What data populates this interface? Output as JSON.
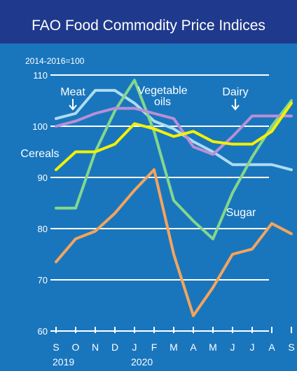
{
  "header": {
    "title": "FAO Food Commodity Price Indices"
  },
  "chart_data": {
    "type": "line",
    "base_note": "2014-2016=100",
    "categories": [
      "S",
      "O",
      "N",
      "D",
      "J",
      "F",
      "M",
      "A",
      "M",
      "J",
      "J",
      "A",
      "S"
    ],
    "year_labels": [
      {
        "text": "2019",
        "at_index": 0
      },
      {
        "text": "2020",
        "at_index": 4
      }
    ],
    "ylim": [
      60,
      110
    ],
    "yticks": [
      60,
      70,
      80,
      90,
      100,
      110
    ],
    "grid": true,
    "series": [
      {
        "name": "Meat",
        "color": "#aedcf0",
        "values": [
          101.5,
          102.5,
          107,
          107,
          104.5,
          101,
          99.5,
          97,
          95,
          92.5,
          92.5,
          92.5,
          91.5
        ]
      },
      {
        "name": "Vegetable oils",
        "color": "#84d68c",
        "values": [
          84,
          84,
          95,
          103,
          109,
          99,
          85.5,
          81.5,
          78,
          87,
          94,
          100,
          105
        ]
      },
      {
        "name": "Dairy",
        "color": "#b98fd6",
        "values": [
          100,
          101,
          102.5,
          103.5,
          103.5,
          102.5,
          101.5,
          96,
          94.5,
          98,
          102,
          102,
          102
        ]
      },
      {
        "name": "Cereals",
        "color": "#f4f006",
        "values": [
          91.5,
          95,
          95,
          96.5,
          100.5,
          99.5,
          98,
          99,
          97,
          96.5,
          96.5,
          99,
          104.5
        ]
      },
      {
        "name": "Sugar",
        "color": "#f4a45c",
        "values": [
          73.5,
          78,
          79.5,
          83,
          87.5,
          91.5,
          75,
          63,
          68.5,
          75,
          76,
          81,
          79
        ]
      }
    ],
    "series_labels": [
      {
        "text": "Meat",
        "series": "Meat"
      },
      {
        "text": "Vegetable",
        "series": "Vegetable oils"
      },
      {
        "text": "oils",
        "series": "Vegetable oils"
      },
      {
        "text": "Dairy",
        "series": "Dairy"
      },
      {
        "text": "Cereals",
        "series": "Cereals"
      },
      {
        "text": "Sugar",
        "series": "Sugar"
      }
    ]
  },
  "colors": {
    "header_bg": "#1f3a8c",
    "plot_bg": "#1976bd",
    "grid": "#ffffff",
    "text": "#ffffff"
  }
}
